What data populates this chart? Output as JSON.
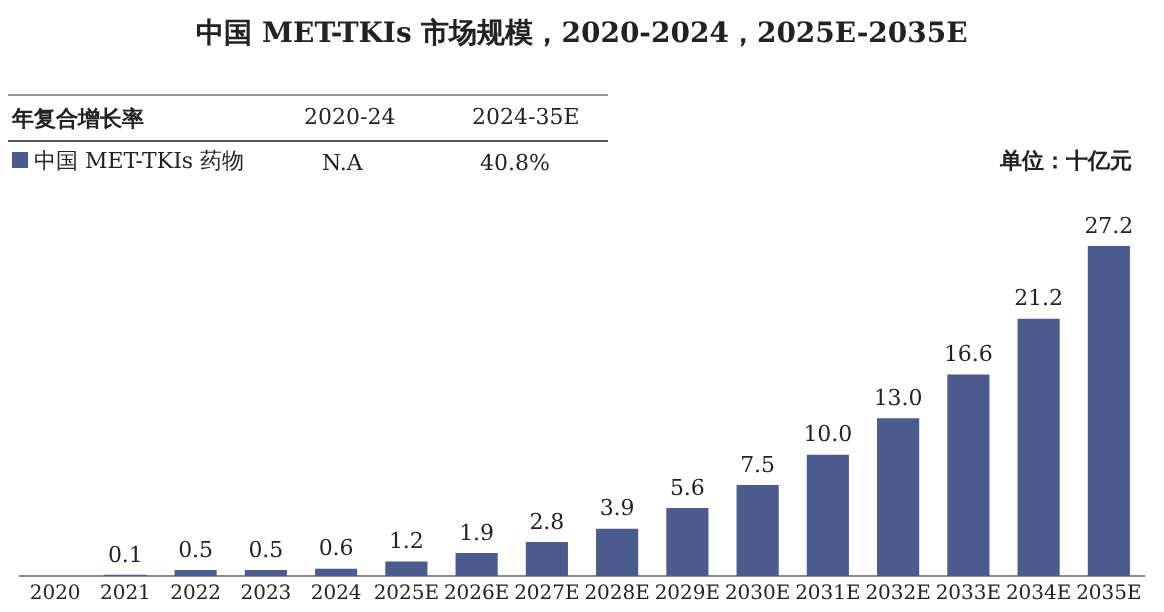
{
  "chart_data": {
    "type": "bar",
    "title": "中国 MET-TKIs 市场规模，2020-2024，2025E-2035E",
    "categories": [
      "2020",
      "2021",
      "2022",
      "2023",
      "2024",
      "2025E",
      "2026E",
      "2027E",
      "2028E",
      "2029E",
      "2030E",
      "2031E",
      "2032E",
      "2033E",
      "2034E",
      "2035E"
    ],
    "series": [
      {
        "name": "中国 MET-TKIs 药物",
        "color": "#4b5b8e",
        "values": [
          null,
          0.1,
          0.5,
          0.5,
          0.6,
          1.2,
          1.9,
          2.8,
          3.9,
          5.6,
          7.5,
          10.0,
          13.0,
          16.6,
          21.2,
          27.2
        ],
        "value_labels": [
          null,
          "0.1",
          "0.5",
          "0.5",
          "0.6",
          "1.2",
          "1.9",
          "2.8",
          "3.9",
          "5.6",
          "7.5",
          "10.0",
          "13.0",
          "16.6",
          "21.2",
          "27.2"
        ]
      }
    ],
    "legend": "top left",
    "grid": false,
    "annotations": [
      "年复合增长率",
      "2020-24",
      "2024-35E",
      "N.A",
      "40.8%",
      "单位：十亿元"
    ]
  }
}
